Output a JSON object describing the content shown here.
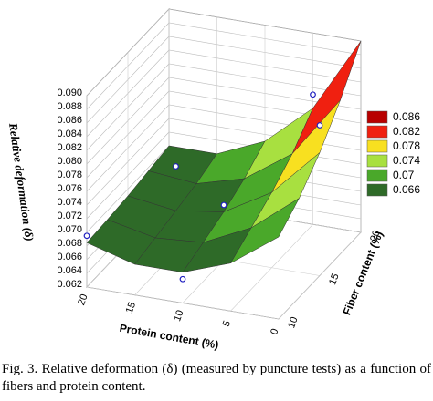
{
  "chart_data": {
    "type": "surface",
    "z_label": "Relative deformation (δ)",
    "x_label": "Protein content (%)",
    "y_label": "Fiber content (%)",
    "x": [
      0,
      5,
      10,
      15,
      20
    ],
    "y": [
      10,
      12.5,
      15,
      17.5,
      20
    ],
    "z": [
      [
        0.074,
        0.069,
        0.0665,
        0.0665,
        0.0685
      ],
      [
        0.0765,
        0.071,
        0.0677,
        0.0672,
        0.0687
      ],
      [
        0.08,
        0.073,
        0.069,
        0.068,
        0.069
      ],
      [
        0.0845,
        0.0755,
        0.0707,
        0.0688,
        0.0695
      ],
      [
        0.09,
        0.079,
        0.073,
        0.07,
        0.07
      ]
    ],
    "points": {
      "x": [
        20,
        10,
        15,
        10,
        5,
        0
      ],
      "y": [
        10,
        10,
        15,
        15,
        20,
        15
      ],
      "z": [
        0.0695,
        0.0655,
        0.0745,
        0.07,
        0.081,
        0.084
      ]
    },
    "xlim": [
      0,
      20
    ],
    "ylim": [
      10,
      20
    ],
    "zlim": [
      0.062,
      0.09
    ],
    "xticks": [
      0,
      5,
      10,
      15,
      20
    ],
    "yticks": [
      10,
      15,
      20
    ],
    "zticks": [
      0.062,
      0.064,
      0.066,
      0.068,
      {
        "value": 0.07,
        "label": "0.070"
      },
      0.072,
      0.074,
      0.076,
      0.078,
      {
        "value": 0.08,
        "label": "0.080"
      },
      0.082,
      0.084,
      0.086,
      0.088,
      {
        "value": 0.09,
        "label": "0.090"
      }
    ],
    "levels": [
      0.086,
      0.082,
      0.078,
      0.074,
      0.07,
      0.066
    ],
    "level_colors": [
      "#b80000",
      "#f02010",
      "#f8e020",
      "#a8e040",
      "#4aa82a",
      "#2e6a28"
    ],
    "point_color": "#2020c0",
    "grid": true,
    "caption": "Fig. 3. Relative deformation (δ)   (measured by puncture tests) as a function of fibers and protein content."
  }
}
